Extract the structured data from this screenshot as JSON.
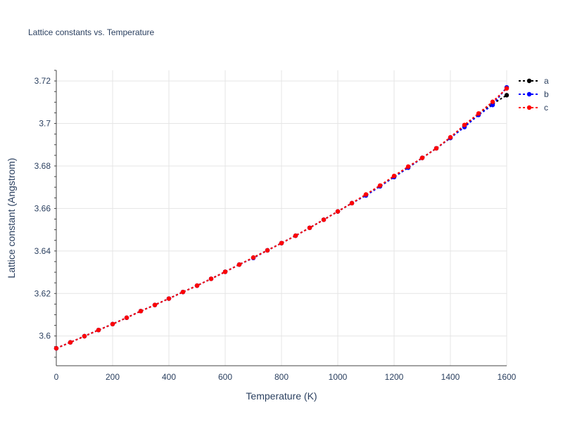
{
  "chart_data": {
    "type": "line",
    "title": "Lattice constants vs. Temperature",
    "xlabel": "Temperature (K)",
    "ylabel": "Lattice constant (Angstrom)",
    "xlim": [
      0,
      1600
    ],
    "ylim": [
      3.586,
      3.725
    ],
    "xticks": [
      0,
      200,
      400,
      600,
      800,
      1000,
      1200,
      1400,
      1600
    ],
    "yticks": [
      3.6,
      3.62,
      3.64,
      3.66,
      3.68,
      3.7,
      3.72
    ],
    "grid": true,
    "legend_position": "top-right",
    "x": [
      0,
      50,
      100,
      150,
      200,
      250,
      300,
      350,
      400,
      450,
      500,
      550,
      600,
      650,
      700,
      750,
      800,
      850,
      900,
      950,
      1000,
      1050,
      1100,
      1150,
      1200,
      1250,
      1300,
      1350,
      1400,
      1450,
      1500,
      1550,
      1600
    ],
    "series": [
      {
        "name": "a",
        "color": "#000000",
        "values": [
          3.5942,
          3.597,
          3.5999,
          3.6028,
          3.6056,
          3.6086,
          3.6117,
          3.6146,
          3.6176,
          3.6207,
          3.6237,
          3.6269,
          3.6302,
          3.6336,
          3.6369,
          3.6403,
          3.6437,
          3.6472,
          3.6509,
          3.6547,
          3.6586,
          3.6625,
          3.6664,
          3.6705,
          3.6748,
          3.6792,
          3.6838,
          3.6883,
          3.6932,
          3.6987,
          3.7042,
          3.7092,
          3.7133
        ]
      },
      {
        "name": "b",
        "color": "#0000ff",
        "values": [
          3.5942,
          3.597,
          3.5999,
          3.6028,
          3.6056,
          3.6086,
          3.6117,
          3.6146,
          3.6176,
          3.6207,
          3.6237,
          3.6269,
          3.6302,
          3.6336,
          3.6367,
          3.6403,
          3.6437,
          3.6472,
          3.6509,
          3.6547,
          3.6586,
          3.6625,
          3.6661,
          3.6704,
          3.6748,
          3.6792,
          3.6838,
          3.6883,
          3.6932,
          3.6983,
          3.704,
          3.7087,
          3.717
        ]
      },
      {
        "name": "c",
        "color": "#ff0000",
        "values": [
          3.5942,
          3.597,
          3.5999,
          3.6028,
          3.6056,
          3.6086,
          3.6117,
          3.6146,
          3.6176,
          3.6207,
          3.6237,
          3.6269,
          3.6302,
          3.6336,
          3.6369,
          3.6403,
          3.6437,
          3.6472,
          3.6509,
          3.6547,
          3.6586,
          3.6625,
          3.6666,
          3.6708,
          3.6753,
          3.6797,
          3.6838,
          3.6883,
          3.6935,
          3.6993,
          3.7047,
          3.7102,
          3.7165
        ]
      }
    ]
  }
}
